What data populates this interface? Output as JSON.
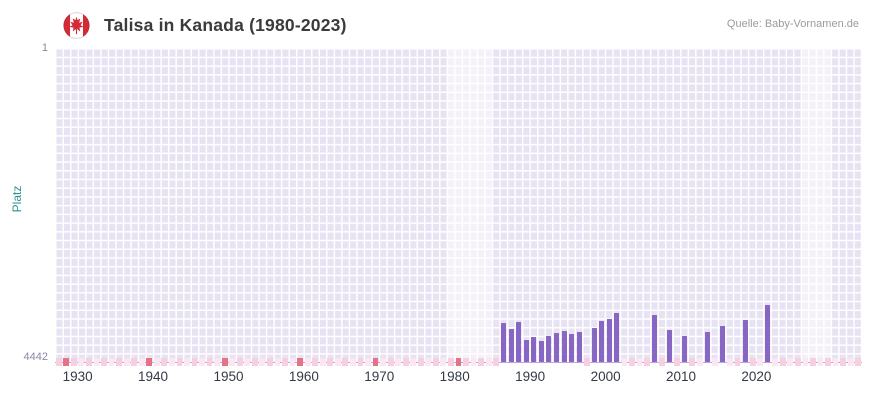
{
  "header": {
    "title": "Talisa in Kanada (1980-2023)",
    "source": "Quelle: Baby-Vornamen.de",
    "flag_icon": "canada-flag"
  },
  "chart_data": {
    "type": "bar",
    "title": "Talisa in Kanada (1980-2023)",
    "ylabel": "Platz",
    "y_axis": {
      "top_label": "1",
      "bottom_label": "4442",
      "min": 1,
      "max": 4442,
      "inverted": true
    },
    "x_axis": {
      "min": 1927,
      "max": 2034,
      "ticks": [
        1930,
        1940,
        1950,
        1960,
        1970,
        1980,
        1990,
        2000,
        2010,
        2020
      ]
    },
    "bars": [
      {
        "year": 1986,
        "rank": 3890
      },
      {
        "year": 1987,
        "rank": 3970
      },
      {
        "year": 1988,
        "rank": 3870
      },
      {
        "year": 1989,
        "rank": 4130
      },
      {
        "year": 1990,
        "rank": 4090
      },
      {
        "year": 1991,
        "rank": 4150
      },
      {
        "year": 1992,
        "rank": 4080
      },
      {
        "year": 1993,
        "rank": 4030
      },
      {
        "year": 1994,
        "rank": 4000
      },
      {
        "year": 1995,
        "rank": 4050
      },
      {
        "year": 1996,
        "rank": 4010
      },
      {
        "year": 1998,
        "rank": 3960
      },
      {
        "year": 1999,
        "rank": 3860
      },
      {
        "year": 2000,
        "rank": 3830
      },
      {
        "year": 2001,
        "rank": 3750
      },
      {
        "year": 2006,
        "rank": 3770
      },
      {
        "year": 2008,
        "rank": 3990
      },
      {
        "year": 2010,
        "rank": 4075
      },
      {
        "year": 2013,
        "rank": 4020
      },
      {
        "year": 2015,
        "rank": 3935
      },
      {
        "year": 2018,
        "rank": 3850
      },
      {
        "year": 2021,
        "rank": 3630
      }
    ],
    "no_rank_marked_years": [
      1928,
      1939,
      1949,
      1959,
      1969,
      1980
    ],
    "light_bands": [
      {
        "from": 1979,
        "to": 1985
      },
      {
        "from": 2026,
        "to": 2030
      }
    ],
    "colors": {
      "bar": "#8766c4",
      "marker_strong": "#e57387",
      "marker_light": "#f6cfe0",
      "marker_faint": "#fbe7f1",
      "plot_bg": "#e8e3f3"
    },
    "legend": "none",
    "grid": "on"
  }
}
